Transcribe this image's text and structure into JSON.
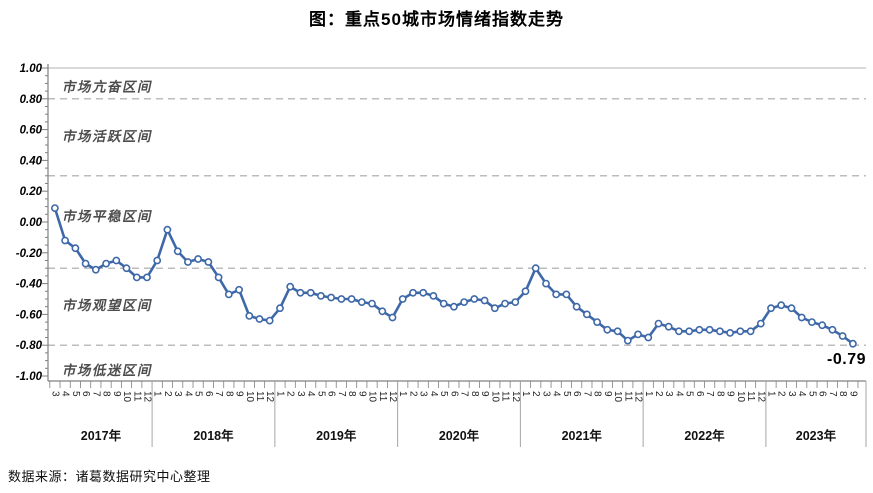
{
  "title": "图：重点50城市场情绪指数走势",
  "source_note": "数据来源：诸葛数据研究中心整理",
  "chart_data": {
    "type": "line",
    "title": "图：重点50城市场情绪指数走势",
    "series_name": "重点50城市场情绪指数",
    "ylim": [
      -1.0,
      1.0
    ],
    "ytick_step": 0.2,
    "yticks": [
      {
        "value": 1.0,
        "label": "1.00"
      },
      {
        "value": 0.8,
        "label": "0.80"
      },
      {
        "value": 0.6,
        "label": "0.60"
      },
      {
        "value": 0.4,
        "label": "0.40"
      },
      {
        "value": 0.2,
        "label": "0.20"
      },
      {
        "value": 0.0,
        "label": "0.00"
      },
      {
        "value": -0.2,
        "label": "-0.20"
      },
      {
        "value": -0.4,
        "label": "-0.40"
      },
      {
        "value": -0.6,
        "label": "-0.60"
      },
      {
        "value": -0.8,
        "label": "-0.80"
      },
      {
        "value": -1.0,
        "label": "-1.00"
      }
    ],
    "zone_boundaries": [
      0.8,
      0.3,
      -0.3,
      -0.8
    ],
    "zones": [
      {
        "label": "市场亢奋区间",
        "y": 0.88
      },
      {
        "label": "市场活跃区间",
        "y": 0.56
      },
      {
        "label": "市场平稳区间",
        "y": 0.04
      },
      {
        "label": "市场观望区间",
        "y": -0.54
      },
      {
        "label": "市场低迷区间",
        "y": -0.96
      }
    ],
    "grid": "horizontal-dashed",
    "legend": "none",
    "line_color": "#3e68a8",
    "marker_fill": "#ffffff",
    "axis_color": "#808080",
    "grid_color": "#a6a6a6",
    "last_value_label": "-0.79",
    "years": [
      {
        "label": "2017年",
        "months": [
          3,
          4,
          5,
          6,
          7,
          8,
          9,
          10,
          11,
          12
        ],
        "values": [
          0.09,
          -0.12,
          -0.17,
          -0.27,
          -0.31,
          -0.27,
          -0.25,
          -0.3,
          -0.36,
          -0.36
        ]
      },
      {
        "label": "2018年",
        "months": [
          1,
          2,
          3,
          4,
          5,
          6,
          7,
          8,
          9,
          10,
          11,
          12
        ],
        "values": [
          -0.25,
          -0.05,
          -0.19,
          -0.26,
          -0.24,
          -0.26,
          -0.36,
          -0.47,
          -0.44,
          -0.61,
          -0.63,
          -0.64
        ]
      },
      {
        "label": "2019年",
        "months": [
          1,
          2,
          3,
          4,
          5,
          6,
          7,
          8,
          9,
          10,
          11,
          12
        ],
        "values": [
          -0.56,
          -0.42,
          -0.46,
          -0.46,
          -0.48,
          -0.49,
          -0.5,
          -0.5,
          -0.52,
          -0.53,
          -0.58,
          -0.62
        ]
      },
      {
        "label": "2020年",
        "months": [
          1,
          2,
          3,
          4,
          5,
          6,
          7,
          8,
          9,
          10,
          11,
          12
        ],
        "values": [
          -0.5,
          -0.46,
          -0.46,
          -0.48,
          -0.53,
          -0.55,
          -0.52,
          -0.5,
          -0.51,
          -0.56,
          -0.53,
          -0.52
        ]
      },
      {
        "label": "2021年",
        "months": [
          1,
          2,
          3,
          4,
          5,
          6,
          7,
          8,
          9,
          10,
          11,
          12
        ],
        "values": [
          -0.45,
          -0.3,
          -0.4,
          -0.47,
          -0.47,
          -0.55,
          -0.6,
          -0.65,
          -0.7,
          -0.71,
          -0.77,
          -0.73
        ]
      },
      {
        "label": "2022年",
        "months": [
          1,
          2,
          3,
          4,
          5,
          6,
          7,
          8,
          9,
          10,
          11,
          12
        ],
        "values": [
          -0.75,
          -0.66,
          -0.68,
          -0.71,
          -0.71,
          -0.7,
          -0.7,
          -0.71,
          -0.72,
          -0.71,
          -0.71,
          -0.66
        ]
      },
      {
        "label": "2023年",
        "months": [
          1,
          2,
          3,
          4,
          5,
          6,
          7,
          8,
          9
        ],
        "values": [
          -0.56,
          -0.54,
          -0.56,
          -0.62,
          -0.65,
          -0.67,
          -0.7,
          -0.74,
          -0.79
        ]
      }
    ]
  }
}
